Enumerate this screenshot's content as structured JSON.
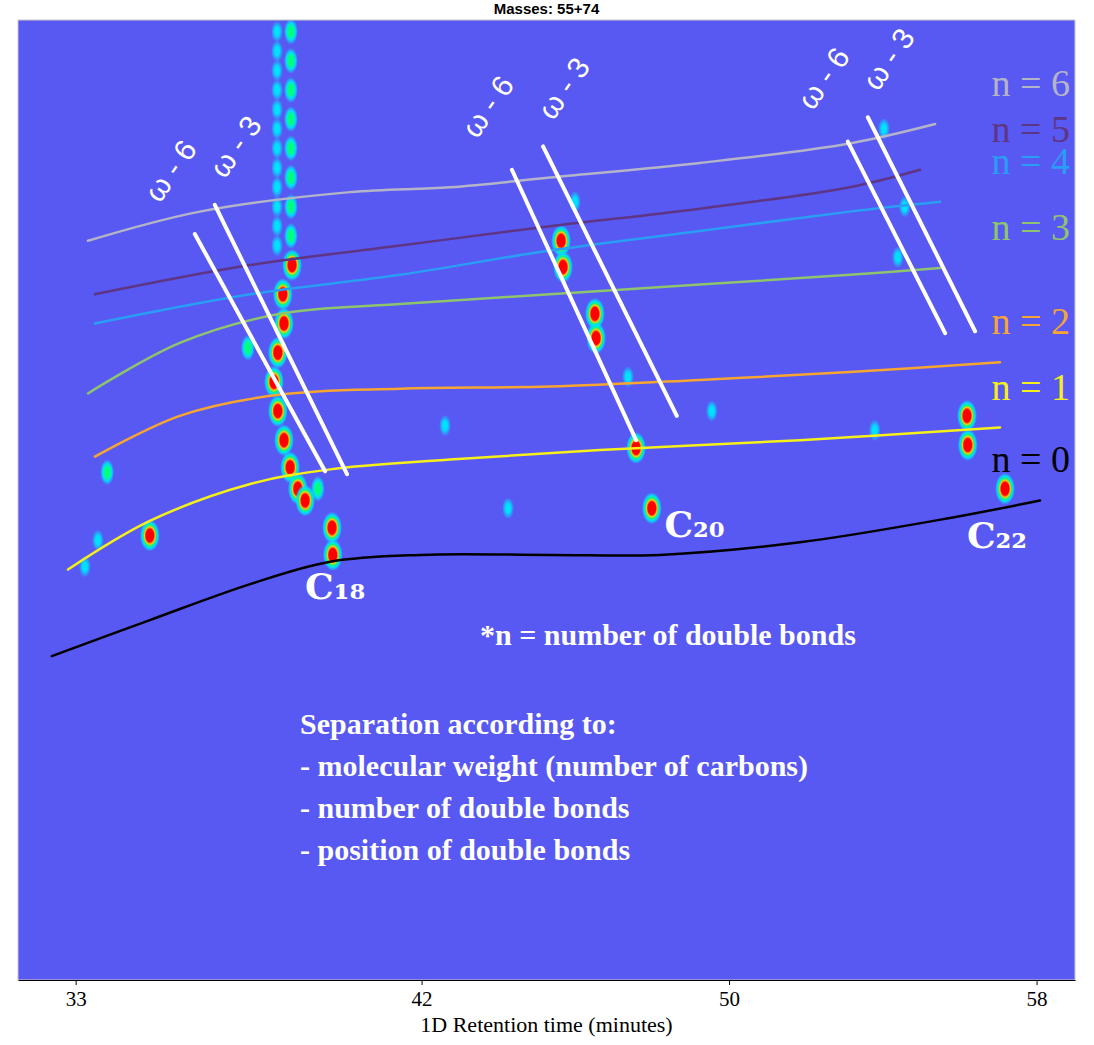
{
  "chart_data": {
    "type": "scatter",
    "title": "Masses: 55+74",
    "x_label": "1D Retention time (minutes)",
    "xlim": [
      31.5,
      59
    ],
    "xticks": [
      33,
      42,
      50,
      58
    ],
    "ylim": [
      0,
      100
    ],
    "tick_labels": "x",
    "grid": false,
    "series": [
      {
        "name": "n = 0",
        "type": "line",
        "line_style": "smooth",
        "color": "#000000",
        "x": [
          32.38,
          34.93,
          37.54,
          39.62,
          41.96,
          45.34,
          48.2,
          51.84,
          55.75,
          58.09
        ],
        "values": [
          33.74,
          37.49,
          41.24,
          43.57,
          44.28,
          44.28,
          44.28,
          45.59,
          48.13,
          49.95
        ]
      },
      {
        "name": "n = 1",
        "type": "line",
        "line_style": "smooth",
        "color": "#f5ef1a",
        "x": [
          32.8,
          34.93,
          37.54,
          39.62,
          42.74,
          46.64,
          51.84,
          57.05
        ],
        "values": [
          42.76,
          47.82,
          51.67,
          53.19,
          54.21,
          55.22,
          56.23,
          57.55
        ]
      },
      {
        "name": "n = 2",
        "type": "line",
        "line_style": "smooth",
        "color": "#f7a531",
        "x": [
          33.5,
          35.71,
          38.32,
          41.44,
          45.34,
          49.24,
          53.14,
          57.05
        ],
        "values": [
          54.51,
          58.77,
          60.99,
          61.6,
          61.81,
          62.51,
          63.33,
          64.34
        ]
      },
      {
        "name": "n = 3",
        "type": "line",
        "line_style": "smooth",
        "color": "#8ec46e",
        "x": [
          33.32,
          35.71,
          38.32,
          41.44,
          45.34,
          49.24,
          53.14,
          55.49
        ],
        "values": [
          61.1,
          66.36,
          69.4,
          70.42,
          71.43,
          72.44,
          73.46,
          74.17
        ]
      },
      {
        "name": "n = 4",
        "type": "line",
        "line_style": "smooth",
        "color": "#2a9df4",
        "x": [
          33.5,
          37.54,
          41.44,
          45.34,
          49.24,
          53.14,
          55.49
        ],
        "values": [
          68.39,
          71.43,
          73.46,
          75.99,
          78.02,
          80.04,
          81.06
        ]
      },
      {
        "name": "n = 5",
        "type": "line",
        "line_style": "smooth",
        "color": "#5e3585",
        "x": [
          33.5,
          37.54,
          41.44,
          45.34,
          49.24,
          53.14,
          54.97
        ],
        "values": [
          71.43,
          74.47,
          76.5,
          78.52,
          80.35,
          82.58,
          84.4
        ]
      },
      {
        "name": "n = 6",
        "type": "line",
        "line_style": "smooth",
        "color": "#b4b4c8",
        "x": [
          33.32,
          36.23,
          40.14,
          42.74,
          45.34,
          49.24,
          53.14,
          55.36
        ],
        "values": [
          77.0,
          80.04,
          82.07,
          82.58,
          83.59,
          85.11,
          87.14,
          89.16
        ]
      },
      {
        "name": "ω - 6",
        "type": "line",
        "line_style": "straight",
        "color": "#ffffff",
        "x": [
          36.1,
          39.49
        ],
        "values": [
          77.71,
          52.99
        ]
      },
      {
        "name": "ω - 3",
        "type": "line",
        "line_style": "straight",
        "color": "#ffffff",
        "x": [
          36.62,
          40.06
        ],
        "values": [
          80.75,
          52.69
        ]
      },
      {
        "name": "ω - 6",
        "type": "line",
        "line_style": "straight",
        "color": "#ffffff",
        "x": [
          44.35,
          47.58
        ],
        "values": [
          84.4,
          56.23
        ]
      },
      {
        "name": "ω - 3",
        "type": "line",
        "line_style": "straight",
        "color": "#ffffff",
        "x": [
          45.16,
          48.64
        ],
        "values": [
          86.83,
          58.77
        ]
      },
      {
        "name": "ω - 6",
        "type": "line",
        "line_style": "straight",
        "color": "#ffffff",
        "x": [
          53.09,
          55.62
        ],
        "values": [
          87.34,
          67.38
        ]
      },
      {
        "name": "ω - 3",
        "type": "line",
        "line_style": "straight",
        "color": "#ffffff",
        "x": [
          53.61,
          56.4
        ],
        "values": [
          89.87,
          67.58
        ]
      },
      {
        "type": "scatter",
        "marker": "blob",
        "x": [
          33.24,
          33.58,
          33.82,
          34.93,
          37.48,
          38.39,
          38.42,
          38.26,
          38.16,
          38.26,
          38.42,
          38.58,
          38.78,
          38.97,
          38.63,
          39.67,
          39.69,
          39.3,
          38.24,
          38.24,
          38.24,
          38.24,
          38.24,
          38.24,
          38.24,
          38.24,
          38.24,
          38.24,
          38.24,
          38.24,
          38.6,
          38.6,
          38.6,
          38.6,
          38.6,
          38.6,
          38.6,
          38.6,
          45.63,
          45.68,
          45.99,
          46.51,
          46.54,
          47.37,
          47.58,
          47.99,
          44.25,
          42.61,
          54.03,
          54.57,
          54.39,
          56.19,
          56.21,
          57.18,
          53.79,
          49.55
        ],
        "values": [
          43.06,
          45.8,
          52.89,
          46.3,
          65.86,
          71.43,
          68.39,
          65.35,
          62.31,
          59.27,
          56.23,
          53.4,
          51.17,
          49.95,
          74.47,
          47.11,
          44.28,
          51.17,
          98.79,
          96.76,
          94.74,
          92.71,
          90.68,
          88.66,
          86.63,
          84.6,
          82.58,
          80.55,
          78.52,
          76.5,
          98.79,
          95.75,
          92.71,
          89.67,
          86.63,
          83.59,
          80.55,
          77.51,
          77.0,
          74.27,
          81.06,
          69.4,
          66.87,
          62.82,
          55.42,
          49.14,
          49.14,
          57.75,
          88.66,
          80.55,
          75.28,
          58.77,
          55.73,
          51.17,
          57.25,
          59.27
        ],
        "colors": [
          "#00e0ff",
          "#00e0ff",
          "#00ff80",
          "#ff0000",
          "#00ff80",
          "#ff0000",
          "#ff0000",
          "#ff0000",
          "#ff0000",
          "#ff0000",
          "#ff0000",
          "#ff0000",
          "#ff0000",
          "#ff0000",
          "#ff0000",
          "#ff0000",
          "#ff0000",
          "#00ff80",
          "#00e0ff",
          "#00e0ff",
          "#00e0ff",
          "#00e0ff",
          "#00e0ff",
          "#00e0ff",
          "#00e0ff",
          "#00e0ff",
          "#00e0ff",
          "#00e0ff",
          "#00e0ff",
          "#00e0ff",
          "#00ff80",
          "#00ff80",
          "#00ff80",
          "#00ff80",
          "#00ff80",
          "#00ff80",
          "#00ff80",
          "#00ff80",
          "#ff0000",
          "#ff0000",
          "#00e0ff",
          "#ff0000",
          "#ff0000",
          "#00e0ff",
          "#ff0000",
          "#ff0000",
          "#00e0ff",
          "#00e0ff",
          "#00e0ff",
          "#00e0ff",
          "#00e0ff",
          "#ff0000",
          "#ff0000",
          "#ff0000",
          "#00e0ff",
          "#00e0ff"
        ]
      }
    ],
    "annotations": [
      {
        "text": "C₁₈",
        "x": 39.75,
        "y": 41.03
      },
      {
        "text": "C₂₀",
        "x": 49.1,
        "y": 47.5
      },
      {
        "text": "C₂₂",
        "x": 56.97,
        "y": 46.3
      }
    ],
    "notes": [
      "*n = number of double bonds",
      "Separation according to:",
      "- molecular weight (number of carbons)",
      "- number of double bonds",
      "- position of double bonds"
    ]
  }
}
